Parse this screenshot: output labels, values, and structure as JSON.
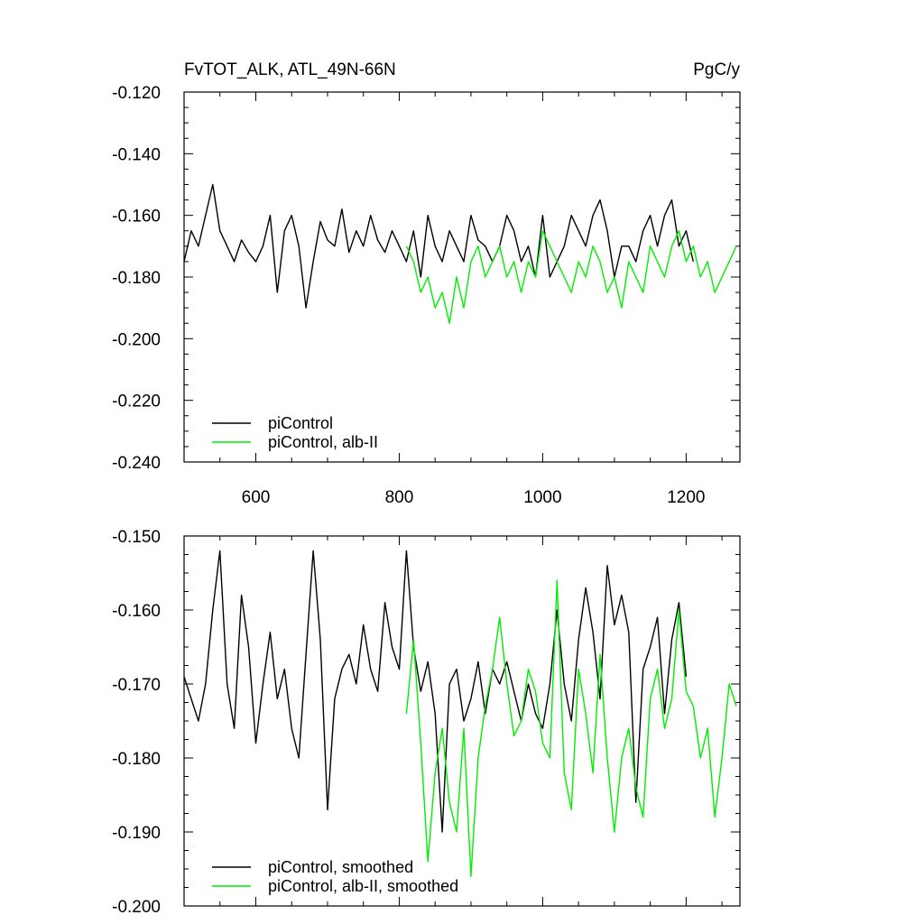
{
  "colors": {
    "black": "#000000",
    "green": "#00ee00"
  },
  "chart_data": [
    {
      "type": "line",
      "title": "FvTOT_ALK, ATL_49N-66N",
      "units": "PgC/y",
      "xlim": [
        500,
        1275
      ],
      "ylim": [
        -0.24,
        -0.12
      ],
      "x_ticks": [
        600,
        800,
        1000,
        1200
      ],
      "x_tick_labels": [
        "600",
        "800",
        "1000",
        "1200"
      ],
      "y_ticks": [
        -0.24,
        -0.22,
        -0.2,
        -0.18,
        -0.16,
        -0.14,
        -0.12
      ],
      "y_tick_labels": [
        "-0.240",
        "-0.220",
        "-0.200",
        "-0.180",
        "-0.160",
        "-0.140",
        "-0.120"
      ],
      "legend_position": "bottom-left",
      "series": [
        {
          "name": "piControl",
          "color": "#000000",
          "x": [
            500,
            510,
            520,
            530,
            540,
            550,
            560,
            570,
            580,
            590,
            600,
            610,
            620,
            630,
            640,
            650,
            660,
            670,
            680,
            690,
            700,
            710,
            720,
            730,
            740,
            750,
            760,
            770,
            780,
            790,
            800,
            810,
            820,
            830,
            840,
            850,
            860,
            870,
            880,
            890,
            900,
            910,
            920,
            930,
            940,
            950,
            960,
            970,
            980,
            990,
            1000,
            1010,
            1020,
            1030,
            1040,
            1050,
            1060,
            1070,
            1080,
            1090,
            1100,
            1110,
            1120,
            1130,
            1140,
            1150,
            1160,
            1170,
            1180,
            1190,
            1200,
            1210
          ],
          "y": [
            -0.175,
            -0.165,
            -0.17,
            -0.16,
            -0.15,
            -0.165,
            -0.17,
            -0.175,
            -0.168,
            -0.172,
            -0.175,
            -0.17,
            -0.16,
            -0.185,
            -0.165,
            -0.16,
            -0.17,
            -0.19,
            -0.175,
            -0.162,
            -0.168,
            -0.17,
            -0.158,
            -0.172,
            -0.165,
            -0.17,
            -0.16,
            -0.168,
            -0.172,
            -0.165,
            -0.17,
            -0.175,
            -0.165,
            -0.18,
            -0.16,
            -0.17,
            -0.175,
            -0.165,
            -0.17,
            -0.175,
            -0.16,
            -0.168,
            -0.17,
            -0.175,
            -0.17,
            -0.16,
            -0.165,
            -0.175,
            -0.17,
            -0.18,
            -0.16,
            -0.18,
            -0.175,
            -0.17,
            -0.16,
            -0.165,
            -0.17,
            -0.16,
            -0.155,
            -0.165,
            -0.18,
            -0.17,
            -0.17,
            -0.175,
            -0.165,
            -0.16,
            -0.17,
            -0.16,
            -0.155,
            -0.17,
            -0.165,
            -0.175
          ]
        },
        {
          "name": "piControl, alb-II",
          "color": "#00ee00",
          "x": [
            810,
            820,
            830,
            840,
            850,
            860,
            870,
            880,
            890,
            900,
            910,
            920,
            930,
            940,
            950,
            960,
            970,
            980,
            990,
            1000,
            1010,
            1020,
            1030,
            1040,
            1050,
            1060,
            1070,
            1080,
            1090,
            1100,
            1110,
            1120,
            1130,
            1140,
            1150,
            1160,
            1170,
            1180,
            1190,
            1200,
            1210,
            1220,
            1230,
            1240,
            1250,
            1260,
            1270
          ],
          "y": [
            -0.17,
            -0.175,
            -0.185,
            -0.18,
            -0.19,
            -0.185,
            -0.195,
            -0.18,
            -0.19,
            -0.175,
            -0.17,
            -0.18,
            -0.175,
            -0.17,
            -0.18,
            -0.175,
            -0.185,
            -0.175,
            -0.18,
            -0.165,
            -0.17,
            -0.175,
            -0.18,
            -0.185,
            -0.175,
            -0.18,
            -0.17,
            -0.175,
            -0.185,
            -0.18,
            -0.19,
            -0.175,
            -0.18,
            -0.185,
            -0.17,
            -0.175,
            -0.18,
            -0.17,
            -0.165,
            -0.175,
            -0.17,
            -0.18,
            -0.175,
            -0.185,
            -0.18,
            -0.175,
            -0.17
          ]
        }
      ]
    },
    {
      "type": "line",
      "xlim": [
        500,
        1275
      ],
      "ylim": [
        -0.2,
        -0.15
      ],
      "x_ticks": [
        600,
        800,
        1000,
        1200
      ],
      "y_ticks": [
        -0.2,
        -0.19,
        -0.18,
        -0.17,
        -0.16,
        -0.15
      ],
      "y_tick_labels": [
        "-0.200",
        "-0.190",
        "-0.180",
        "-0.170",
        "-0.160",
        "-0.150"
      ],
      "legend_position": "bottom-left",
      "series": [
        {
          "name": "piControl, smoothed",
          "color": "#000000",
          "x": [
            500,
            510,
            520,
            530,
            540,
            550,
            560,
            570,
            580,
            590,
            600,
            610,
            620,
            630,
            640,
            650,
            660,
            670,
            680,
            690,
            700,
            710,
            720,
            730,
            740,
            750,
            760,
            770,
            780,
            790,
            800,
            810,
            820,
            830,
            840,
            850,
            860,
            870,
            880,
            890,
            900,
            910,
            920,
            930,
            940,
            950,
            960,
            970,
            980,
            990,
            1000,
            1010,
            1020,
            1030,
            1040,
            1050,
            1060,
            1070,
            1080,
            1090,
            1100,
            1110,
            1120,
            1130,
            1140,
            1150,
            1160,
            1170,
            1180,
            1190,
            1200
          ],
          "y": [
            -0.169,
            -0.172,
            -0.175,
            -0.17,
            -0.16,
            -0.152,
            -0.17,
            -0.176,
            -0.158,
            -0.165,
            -0.178,
            -0.17,
            -0.163,
            -0.172,
            -0.168,
            -0.176,
            -0.18,
            -0.166,
            -0.152,
            -0.164,
            -0.187,
            -0.172,
            -0.168,
            -0.166,
            -0.17,
            -0.162,
            -0.168,
            -0.171,
            -0.159,
            -0.165,
            -0.168,
            -0.152,
            -0.165,
            -0.171,
            -0.167,
            -0.174,
            -0.19,
            -0.17,
            -0.168,
            -0.175,
            -0.172,
            -0.167,
            -0.174,
            -0.168,
            -0.17,
            -0.167,
            -0.171,
            -0.175,
            -0.17,
            -0.174,
            -0.176,
            -0.17,
            -0.16,
            -0.17,
            -0.175,
            -0.164,
            -0.157,
            -0.163,
            -0.172,
            -0.154,
            -0.162,
            -0.158,
            -0.163,
            -0.186,
            -0.168,
            -0.165,
            -0.161,
            -0.174,
            -0.164,
            -0.159,
            -0.169
          ]
        },
        {
          "name": "piControl, alb-II, smoothed",
          "color": "#00ee00",
          "x": [
            810,
            820,
            830,
            840,
            850,
            860,
            870,
            880,
            890,
            900,
            910,
            920,
            930,
            940,
            950,
            960,
            970,
            980,
            990,
            1000,
            1010,
            1020,
            1030,
            1040,
            1050,
            1060,
            1070,
            1080,
            1090,
            1100,
            1110,
            1120,
            1130,
            1140,
            1150,
            1160,
            1170,
            1180,
            1190,
            1200,
            1210,
            1220,
            1230,
            1240,
            1250,
            1260,
            1270
          ],
          "y": [
            -0.174,
            -0.164,
            -0.178,
            -0.194,
            -0.182,
            -0.176,
            -0.186,
            -0.19,
            -0.176,
            -0.196,
            -0.18,
            -0.173,
            -0.168,
            -0.161,
            -0.17,
            -0.177,
            -0.175,
            -0.168,
            -0.171,
            -0.178,
            -0.18,
            -0.156,
            -0.182,
            -0.187,
            -0.168,
            -0.174,
            -0.182,
            -0.166,
            -0.18,
            -0.19,
            -0.18,
            -0.176,
            -0.184,
            -0.188,
            -0.172,
            -0.168,
            -0.176,
            -0.172,
            -0.16,
            -0.171,
            -0.173,
            -0.18,
            -0.176,
            -0.188,
            -0.18,
            -0.17,
            -0.173
          ]
        }
      ]
    }
  ]
}
